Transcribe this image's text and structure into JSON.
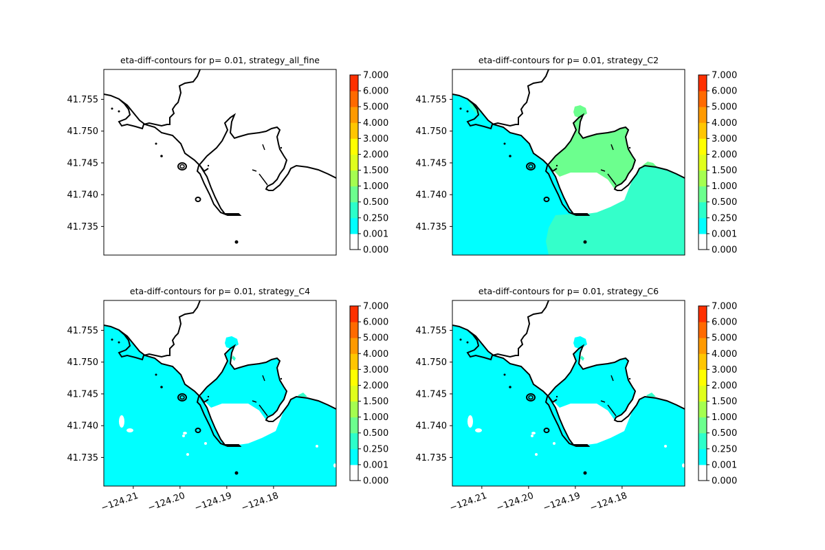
{
  "chart_data": [
    {
      "type": "heatmap",
      "title": "eta-diff-contours for p= 0.01, strategy_all_fine",
      "xlim": [
        -124.2163,
        -124.1666
      ],
      "ylim": [
        41.7305,
        41.7597
      ],
      "yticks": [
        41.735,
        41.74,
        41.745,
        41.75,
        41.755
      ],
      "ytick_labels": [
        "41.735",
        "41.740",
        "41.745",
        "41.750",
        "41.755"
      ],
      "xticks": [],
      "xtick_labels": [],
      "fill": "none"
    },
    {
      "type": "heatmap",
      "title": "eta-diff-contours for p= 0.01, strategy_C2",
      "xlim": [
        -124.2163,
        -124.1666
      ],
      "ylim": [
        41.7305,
        41.7597
      ],
      "yticks": [
        41.735,
        41.74,
        41.745,
        41.75,
        41.755
      ],
      "ytick_labels": [
        "41.735",
        "41.740",
        "41.745",
        "41.750",
        "41.755"
      ],
      "xticks": [],
      "xtick_labels": [],
      "fill": "mixed"
    },
    {
      "type": "heatmap",
      "title": "eta-diff-contours for p= 0.01, strategy_C4",
      "xlim": [
        -124.2163,
        -124.1666
      ],
      "ylim": [
        41.7305,
        41.7597
      ],
      "yticks": [
        41.735,
        41.74,
        41.745,
        41.75,
        41.755
      ],
      "ytick_labels": [
        "41.735",
        "41.740",
        "41.745",
        "41.750",
        "41.755"
      ],
      "xticks": [
        -124.21,
        -124.2,
        -124.19,
        -124.18
      ],
      "xtick_labels": [
        "−124.21",
        "−124.20",
        "−124.19",
        "−124.18"
      ],
      "fill": "cyan"
    },
    {
      "type": "heatmap",
      "title": "eta-diff-contours for p= 0.01, strategy_C6",
      "xlim": [
        -124.2163,
        -124.1666
      ],
      "ylim": [
        41.7305,
        41.7597
      ],
      "yticks": [
        41.735,
        41.74,
        41.745,
        41.75,
        41.755
      ],
      "ytick_labels": [
        "41.735",
        "41.740",
        "41.745",
        "41.750",
        "41.755"
      ],
      "xticks": [
        -124.21,
        -124.2,
        -124.19,
        -124.18
      ],
      "xtick_labels": [
        "−124.21",
        "−124.20",
        "−124.19",
        "−124.18"
      ],
      "fill": "cyan"
    }
  ],
  "colorbar": {
    "levels": [
      0.0,
      0.001,
      0.25,
      0.5,
      1.0,
      1.5,
      2.0,
      3.0,
      4.0,
      5.0,
      6.0,
      7.0
    ],
    "labels": [
      "0.000",
      "0.001",
      "0.250",
      "0.500",
      "1.000",
      "1.500",
      "2.000",
      "3.000",
      "4.000",
      "5.000",
      "6.000",
      "7.000"
    ],
    "colors": [
      "#ffffff",
      "#00ffff",
      "#2cffca",
      "#6cff8e",
      "#a5ff50",
      "#e0ff1c",
      "#ffff00",
      "#ffc600",
      "#ff9a00",
      "#ff6a00",
      "#ff3000",
      "#ff0000"
    ]
  },
  "colors": {
    "cyan": "#00ffff",
    "mint": "#34ffca",
    "green": "#6cff8e",
    "coast": "#000000"
  }
}
